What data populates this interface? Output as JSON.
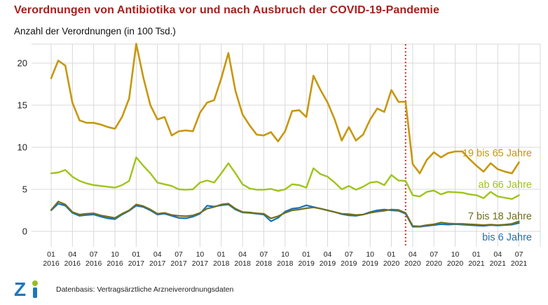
{
  "header": {
    "title": "Verordnungen von Antibiotika vor und nach Ausbruch der COVID-19-Pandemie",
    "subtitle": "Anzahl der Verordnungen (in 100 Tsd.)"
  },
  "footer": {
    "logo_z": "Z",
    "source": "Datenbasis: Vertragsärztliche Arzneiverordnungsdaten"
  },
  "colors": {
    "title": "#a3231e",
    "grid": "#d8d8d8",
    "axis_text": "#222222",
    "pandemic_line": "#c0392b",
    "logo_blue": "#2077bc",
    "logo_green": "#94bf23"
  },
  "chart_data": {
    "type": "line",
    "title": "Verordnungen von Antibiotika vor und nach Ausbruch der COVID-19-Pandemie",
    "ylabel": "Anzahl der Verordnungen (in 100 Tsd.)",
    "xlabel": "",
    "ylim": [
      0,
      22.5
    ],
    "yticks": [
      0,
      5,
      10,
      15,
      20
    ],
    "grid": true,
    "legend_position": "inline-right",
    "x_tick_every_months": 3,
    "x": [
      "01 2016",
      "02 2016",
      "03 2016",
      "04 2016",
      "05 2016",
      "06 2016",
      "07 2016",
      "08 2016",
      "09 2016",
      "10 2016",
      "11 2016",
      "12 2016",
      "01 2017",
      "02 2017",
      "03 2017",
      "04 2017",
      "05 2017",
      "06 2017",
      "07 2017",
      "08 2017",
      "09 2017",
      "10 2017",
      "11 2017",
      "12 2017",
      "01 2018",
      "02 2018",
      "03 2018",
      "04 2018",
      "05 2018",
      "06 2018",
      "07 2018",
      "08 2018",
      "09 2018",
      "10 2018",
      "11 2018",
      "12 2018",
      "01 2019",
      "02 2019",
      "03 2019",
      "04 2019",
      "05 2019",
      "06 2019",
      "07 2019",
      "08 2019",
      "09 2019",
      "10 2019",
      "11 2019",
      "12 2019",
      "01 2020",
      "02 2020",
      "03 2020",
      "04 2020",
      "05 2020",
      "06 2020",
      "07 2020",
      "08 2020",
      "09 2020",
      "10 2020",
      "11 2020",
      "12 2020",
      "01 2021",
      "02 2021",
      "03 2021",
      "04 2021",
      "05 2021",
      "06 2021",
      "07 2021"
    ],
    "annotation": {
      "type": "vertical-line",
      "at": "03 2020",
      "style": "dotted",
      "color": "#c0392b"
    },
    "series": [
      {
        "name": "19 bis 65 Jahre",
        "color": "#c6980f",
        "values": [
          18.2,
          20.3,
          19.7,
          15.3,
          13.2,
          12.9,
          12.9,
          12.7,
          12.4,
          12.2,
          13.6,
          15.8,
          22.3,
          18.3,
          15.0,
          13.3,
          13.6,
          11.4,
          11.9,
          12.0,
          11.9,
          14.1,
          15.3,
          15.6,
          18.2,
          21.2,
          16.7,
          13.9,
          12.6,
          11.5,
          11.4,
          11.8,
          10.7,
          11.9,
          14.3,
          14.4,
          13.6,
          18.5,
          16.8,
          15.3,
          13.3,
          10.8,
          12.4,
          10.8,
          11.5,
          13.3,
          14.6,
          14.2,
          16.8,
          15.4,
          15.4,
          8.0,
          6.9,
          8.5,
          9.4,
          8.8,
          9.3,
          9.5,
          9.5,
          8.6,
          7.8,
          7.1,
          8.1,
          7.4,
          7.1,
          6.9,
          8.2
        ]
      },
      {
        "name": "ab 66 Jahre",
        "color": "#9fc41c",
        "values": [
          6.9,
          7.0,
          7.3,
          6.5,
          6.0,
          5.7,
          5.5,
          5.4,
          5.3,
          5.2,
          5.5,
          6.0,
          8.8,
          7.8,
          6.9,
          5.8,
          5.6,
          5.4,
          5.0,
          4.95,
          5.0,
          5.8,
          6.05,
          5.8,
          6.9,
          8.1,
          6.9,
          5.6,
          5.1,
          4.95,
          4.95,
          5.05,
          4.8,
          5.0,
          5.6,
          5.5,
          5.2,
          7.5,
          6.8,
          6.5,
          5.8,
          5.0,
          5.4,
          4.95,
          5.3,
          5.8,
          5.9,
          5.5,
          6.7,
          6.05,
          6.0,
          4.3,
          4.15,
          4.7,
          4.85,
          4.4,
          4.7,
          4.65,
          4.6,
          4.4,
          4.3,
          3.95,
          4.7,
          4.15,
          4.0,
          3.85,
          4.3
        ]
      },
      {
        "name": "7 bis 18 Jahre",
        "color": "#716f1e",
        "values": [
          2.55,
          3.55,
          3.2,
          2.3,
          2.0,
          2.1,
          2.15,
          1.9,
          1.75,
          1.6,
          2.1,
          2.5,
          3.2,
          3.0,
          2.6,
          2.1,
          2.2,
          1.95,
          1.85,
          1.8,
          1.9,
          2.2,
          2.7,
          2.9,
          3.2,
          3.3,
          2.7,
          2.3,
          2.25,
          2.15,
          2.1,
          1.55,
          1.8,
          2.2,
          2.5,
          2.6,
          2.75,
          2.85,
          2.7,
          2.5,
          2.3,
          2.1,
          2.05,
          1.95,
          2.0,
          2.2,
          2.35,
          2.45,
          2.6,
          2.55,
          2.2,
          0.65,
          0.6,
          0.75,
          0.85,
          1.05,
          0.95,
          0.9,
          0.9,
          0.85,
          0.8,
          0.75,
          0.8,
          0.75,
          0.8,
          0.9,
          1.2
        ]
      },
      {
        "name": "bis 6 Jahre",
        "color": "#1872b6",
        "values": [
          2.5,
          3.3,
          3.05,
          2.2,
          1.85,
          1.95,
          2.0,
          1.75,
          1.55,
          1.45,
          2.0,
          2.45,
          3.05,
          2.9,
          2.5,
          2.0,
          2.1,
          1.85,
          1.6,
          1.55,
          1.75,
          2.1,
          3.05,
          2.95,
          3.1,
          3.2,
          2.6,
          2.25,
          2.2,
          2.1,
          2.0,
          1.2,
          1.6,
          2.35,
          2.7,
          2.8,
          3.1,
          2.9,
          2.7,
          2.5,
          2.3,
          2.05,
          1.9,
          1.85,
          2.0,
          2.3,
          2.5,
          2.6,
          2.5,
          2.45,
          2.1,
          0.55,
          0.55,
          0.65,
          0.75,
          0.85,
          0.8,
          0.85,
          0.8,
          0.75,
          0.7,
          0.65,
          0.75,
          0.7,
          0.75,
          0.8,
          1.0
        ]
      }
    ]
  }
}
